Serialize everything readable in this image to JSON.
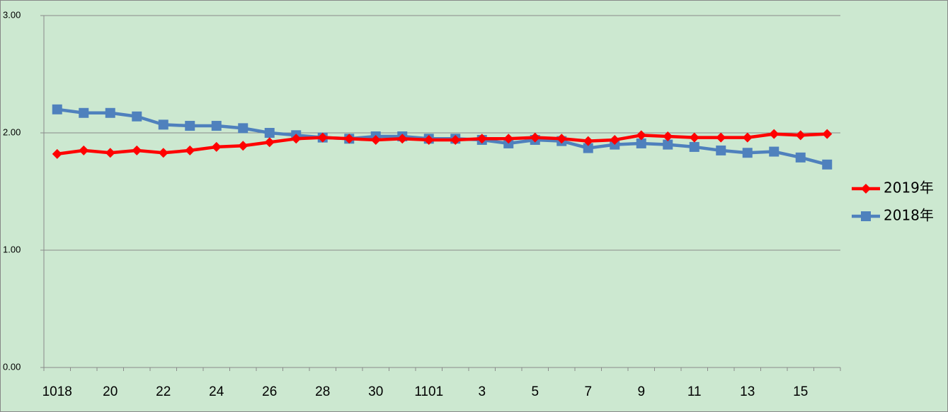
{
  "chart_data": {
    "type": "line",
    "categories": [
      "1018",
      null,
      "20",
      null,
      "22",
      null,
      "24",
      null,
      "26",
      null,
      "28",
      null,
      "30",
      null,
      "1101",
      null,
      "3",
      null,
      "5",
      null,
      "7",
      null,
      "9",
      null,
      "11",
      null,
      "13",
      null,
      "15",
      null
    ],
    "series": [
      {
        "name": "2019年",
        "color": "#ff0000",
        "marker": "diamond",
        "values": [
          1.82,
          1.85,
          1.83,
          1.85,
          1.83,
          1.85,
          1.88,
          1.89,
          1.92,
          1.95,
          1.96,
          1.95,
          1.94,
          1.95,
          1.94,
          1.94,
          1.95,
          1.95,
          1.96,
          1.95,
          1.93,
          1.94,
          1.98,
          1.97,
          1.96,
          1.96,
          1.96,
          1.99,
          1.98,
          1.99
        ]
      },
      {
        "name": "2018年",
        "color": "#4f81bd",
        "marker": "square",
        "values": [
          2.2,
          2.17,
          2.17,
          2.14,
          2.07,
          2.06,
          2.06,
          2.04,
          2.0,
          1.98,
          1.96,
          1.95,
          1.97,
          1.97,
          1.95,
          1.95,
          1.94,
          1.91,
          1.94,
          1.93,
          1.87,
          1.9,
          1.91,
          1.9,
          1.88,
          1.85,
          1.83,
          1.84,
          1.79,
          1.73
        ]
      }
    ],
    "ylim": [
      0,
      3
    ],
    "yticks": [
      {
        "value": 0,
        "label": "0.00"
      },
      {
        "value": 1,
        "label": "1.00"
      },
      {
        "value": 2,
        "label": "2.00"
      },
      {
        "value": 3,
        "label": "3.00"
      }
    ],
    "grid": true,
    "legend": "right"
  }
}
